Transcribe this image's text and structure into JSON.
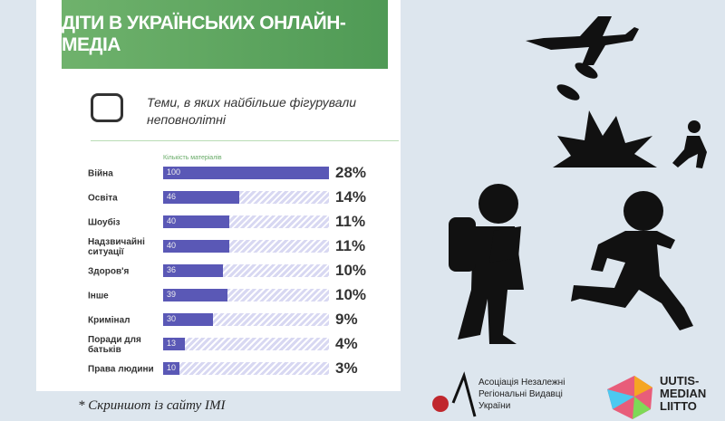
{
  "header": "ДІТИ В УКРАЇНСЬКИХ ОНЛАЙН-МЕДІА",
  "chart_data": {
    "type": "bar",
    "title": "Теми, в яких найбільше фігурували неповнолітні",
    "axis_label": "Кількість матеріалів",
    "categories": [
      "Війна",
      "Освіта",
      "Шоубіз",
      "Надзвичайні ситуації",
      "Здоров'я",
      "Інше",
      "Кримінал",
      "Поради для батьків",
      "Права людини"
    ],
    "values": [
      100,
      46,
      40,
      40,
      36,
      39,
      30,
      13,
      10
    ],
    "shares": [
      "28%",
      "14%",
      "11%",
      "11%",
      "10%",
      "10%",
      "9%",
      "4%",
      "3%"
    ],
    "xlim": [
      0,
      100
    ],
    "color": "#5a58b6"
  },
  "footnote": "* Скриншот із сайту IMI",
  "logos": [
    "Асоціація Незалежні Регіональні Видавці України",
    "UUTIS-MEDIAN LIITTO"
  ]
}
